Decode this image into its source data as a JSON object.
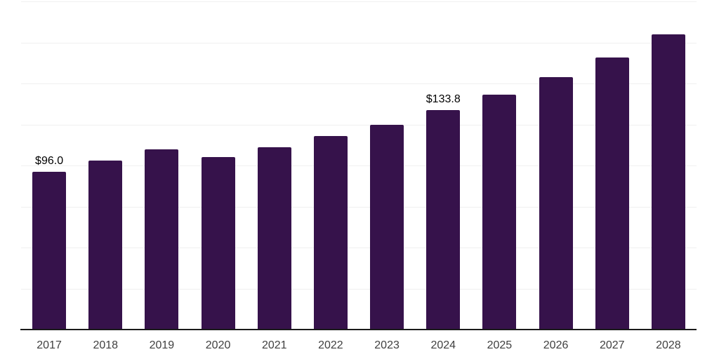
{
  "chart_data": {
    "type": "bar",
    "title": "",
    "xlabel": "",
    "ylabel": "",
    "categories": [
      "2017",
      "2018",
      "2019",
      "2020",
      "2021",
      "2022",
      "2023",
      "2024",
      "2025",
      "2026",
      "2027",
      "2028"
    ],
    "values": [
      96.0,
      103.0,
      110.0,
      105.0,
      111.0,
      118.0,
      125.0,
      133.8,
      143.0,
      154.0,
      166.0,
      180.0
    ],
    "data_labels": [
      "$96.0",
      "",
      "",
      "",
      "",
      "",
      "",
      "$133.8",
      "",
      "",
      "",
      ""
    ],
    "ylim": [
      0,
      200
    ],
    "grid_step": 25,
    "grid": true,
    "legend": false,
    "y_axis_tick_labels_visible": false,
    "colors": {
      "bar": "#36124B",
      "axis_line": "#1a1a1a",
      "gridline": "#f0f0f0",
      "x_tick_label": "#404040",
      "value_label": "#000000",
      "background": "#ffffff"
    }
  }
}
